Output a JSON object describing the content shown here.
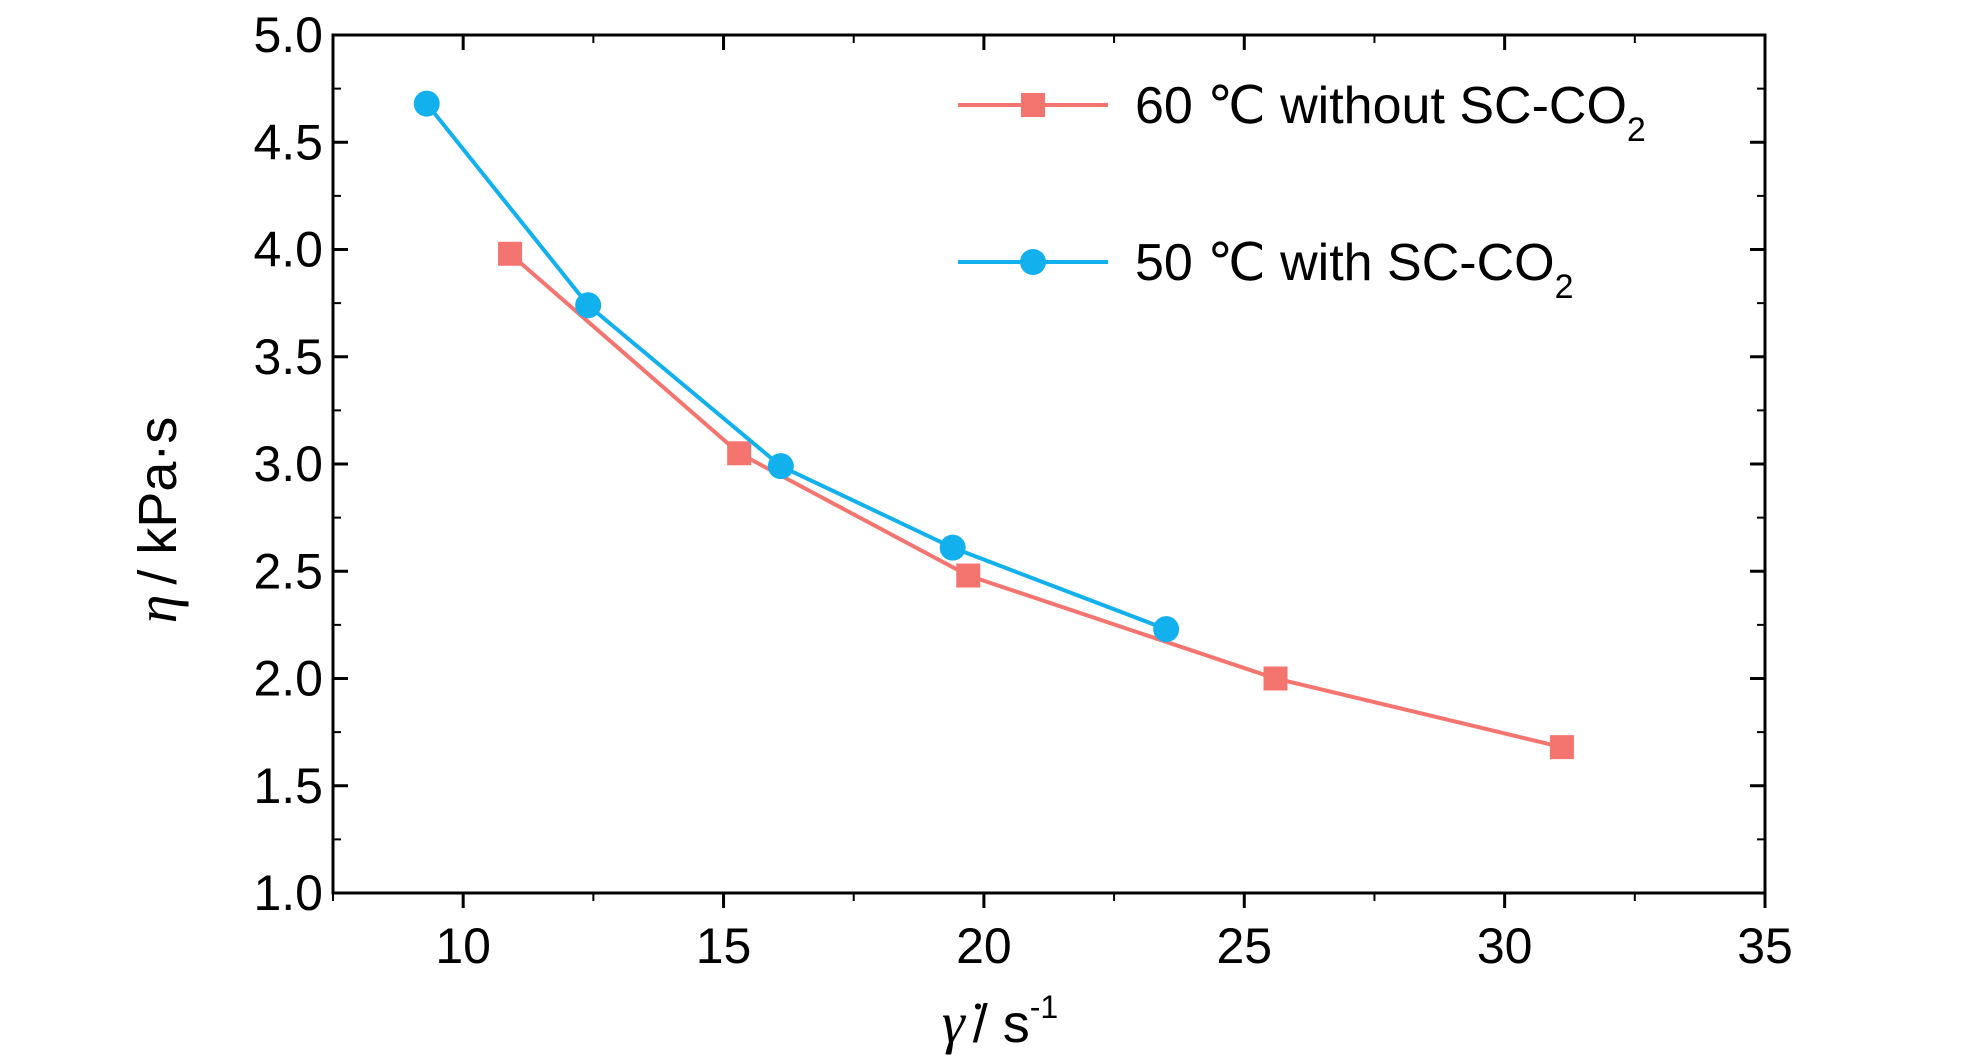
{
  "chart_data": {
    "type": "line",
    "xlabel": "/ s",
    "xlabel_symbol": "γ̇",
    "xlabel_exponent": "-1",
    "ylabel": "/ kPa·s",
    "ylabel_symbol": "η",
    "xlim": [
      7.5,
      35
    ],
    "ylim": [
      1.0,
      5.0
    ],
    "xticks": [
      10,
      15,
      20,
      25,
      30,
      35
    ],
    "xtick_labels": [
      "10",
      "15",
      "20",
      "25",
      "30",
      "35"
    ],
    "yticks": [
      1.0,
      1.5,
      2.0,
      2.5,
      3.0,
      3.5,
      4.0,
      4.5,
      5.0
    ],
    "ytick_labels": [
      "1.0",
      "1.5",
      "2.0",
      "2.5",
      "3.0",
      "3.5",
      "4.0",
      "4.5",
      "5.0"
    ],
    "grid": false,
    "legend_position": "top-right",
    "series": [
      {
        "name": "60 ℃  without SC-CO",
        "name_subscript": "2",
        "marker": "square",
        "color": "#f4756f",
        "x": [
          10.9,
          15.3,
          19.7,
          25.6,
          31.1
        ],
        "y": [
          3.98,
          3.05,
          2.48,
          2.0,
          1.68
        ]
      },
      {
        "name": "50 ℃  with SC-CO",
        "name_subscript": "2",
        "marker": "circle",
        "color": "#12b0ec",
        "x": [
          9.3,
          12.4,
          16.1,
          19.4,
          23.5
        ],
        "y": [
          4.68,
          3.74,
          2.99,
          2.61,
          2.23
        ]
      }
    ]
  }
}
